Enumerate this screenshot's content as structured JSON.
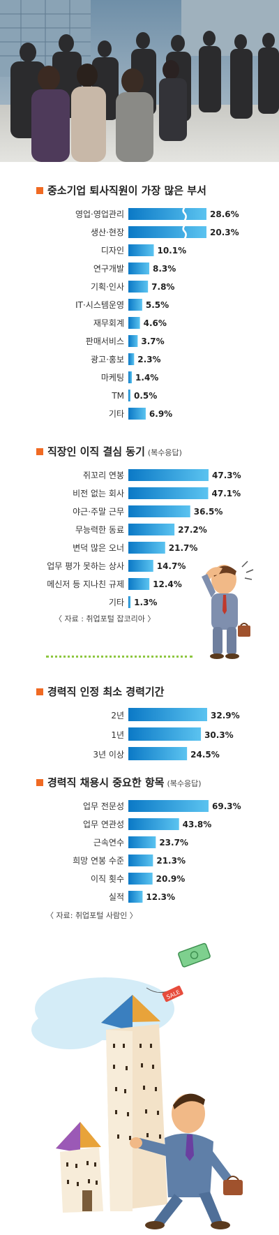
{
  "sections": [
    {
      "title": "중소기업 퇴사직원이 가장 많은 부서",
      "note": "",
      "chart_data": {
        "type": "bar",
        "orientation": "horizontal",
        "unit": "%",
        "categories": [
          "영업·영업관리",
          "생산·현장",
          "디자인",
          "연구개발",
          "기획·인사",
          "IT·시스템운영",
          "재무회계",
          "판매서비스",
          "광고·홍보",
          "마케팅",
          "TM",
          "기타"
        ],
        "values": [
          28.6,
          20.3,
          10.1,
          8.3,
          7.8,
          5.5,
          4.6,
          3.7,
          2.3,
          1.4,
          0.5,
          6.9
        ],
        "value_labels": [
          "28.6%",
          "20.3%",
          "10.1%",
          "8.3%",
          "7.8%",
          "5.5%",
          "4.6%",
          "3.7%",
          "2.3%",
          "1.4%",
          "0.5%",
          "6.9%"
        ],
        "broken_axis_categories": [
          "영업·영업관리",
          "생산·현장"
        ],
        "bar_color": "#1ba4e4"
      }
    },
    {
      "title": "직장인 이직 결심 동기",
      "note": "(복수응답)",
      "chart_data": {
        "type": "bar",
        "orientation": "horizontal",
        "unit": "%",
        "categories": [
          "쥐꼬리 연봉",
          "비전 없는 회사",
          "야근·주말 근무",
          "무능력한 동료",
          "변덕 많은 오너",
          "업무 평가 못하는 상사",
          "메신저 등 지나친 규제",
          "기타"
        ],
        "values": [
          47.3,
          47.1,
          36.5,
          27.2,
          21.7,
          14.7,
          12.4,
          1.3
        ],
        "value_labels": [
          "47.3%",
          "47.1%",
          "36.5%",
          "27.2%",
          "21.7%",
          "14.7%",
          "12.4%",
          "1.3%"
        ],
        "bar_color": "#1ba4e4"
      },
      "source": "〈 자료 : 취업포털 잡코리아 〉"
    },
    {
      "title": "경력직 인정 최소 경력기간",
      "note": "",
      "chart_data": {
        "type": "bar",
        "orientation": "horizontal",
        "unit": "%",
        "categories": [
          "2년",
          "1년",
          "3년 이상"
        ],
        "values": [
          32.9,
          30.3,
          24.5
        ],
        "value_labels": [
          "32.9%",
          "30.3%",
          "24.5%"
        ],
        "bar_color": "#1ba4e4"
      }
    },
    {
      "title": "경력직 채용시 중요한 항목",
      "note": "(복수응답)",
      "chart_data": {
        "type": "bar",
        "orientation": "horizontal",
        "unit": "%",
        "categories": [
          "업무 전문성",
          "업무 연관성",
          "근속연수",
          "희망 연봉 수준",
          "이직 횟수",
          "실적"
        ],
        "values": [
          69.3,
          43.8,
          23.7,
          21.3,
          20.9,
          12.3
        ],
        "value_labels": [
          "69.3%",
          "43.8%",
          "23.7%",
          "21.3%",
          "20.9%",
          "12.3%"
        ],
        "bar_color": "#1ba4e4"
      },
      "source": "〈 자료: 취업포털 사람인 〉"
    }
  ],
  "illustrations": {
    "top_photo": "commuters-crowd-photo",
    "worried_man": "worried-businessman-icon",
    "buildings_man": "businessman-walking-buildings-icon",
    "sale_tag": "SALE"
  }
}
